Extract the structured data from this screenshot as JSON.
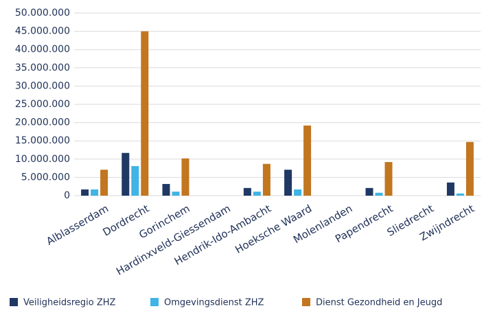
{
  "chart_data": {
    "type": "bar",
    "categories": [
      "Alblasserdam",
      "Dordrecht",
      "Gorinchem",
      "Hardinxveld-Giessendam",
      "Hendrik-Ido-Ambacht",
      "Hoeksche Waard",
      "Molenlanden",
      "Papendrecht",
      "Sliedrecht",
      "Zwijndrecht"
    ],
    "series": [
      {
        "name": "Veiligheidsregio ZHZ",
        "color": "#1f3864",
        "values": [
          1700000,
          11700000,
          3200000,
          0,
          2100000,
          7100000,
          0,
          2100000,
          0,
          3600000
        ]
      },
      {
        "name": "Omgevingsdienst ZHZ",
        "color": "#3fb4e5",
        "values": [
          1700000,
          8100000,
          1100000,
          0,
          1100000,
          1700000,
          0,
          800000,
          0,
          600000
        ]
      },
      {
        "name": "Dienst Gezondheid en Jeugd",
        "color": "#c2761f",
        "values": [
          7100000,
          45000000,
          10200000,
          0,
          8700000,
          19200000,
          0,
          9200000,
          0,
          14700000
        ]
      }
    ],
    "ylim": [
      0,
      50000000
    ],
    "yticks": [
      {
        "value": 0,
        "label": "0"
      },
      {
        "value": 5000000,
        "label": "5.000.000"
      },
      {
        "value": 10000000,
        "label": "10.000.000"
      },
      {
        "value": 15000000,
        "label": "15.000.000"
      },
      {
        "value": 20000000,
        "label": "20.000.000"
      },
      {
        "value": 25000000,
        "label": "25.000.000"
      },
      {
        "value": 30000000,
        "label": "30.000.000"
      },
      {
        "value": 35000000,
        "label": "35.000.000"
      },
      {
        "value": 40000000,
        "label": "40.000.000"
      },
      {
        "value": 45000000,
        "label": "45.000.000"
      },
      {
        "value": 50000000,
        "label": "50.000.000"
      }
    ],
    "grid": true,
    "legend": "bottom"
  }
}
